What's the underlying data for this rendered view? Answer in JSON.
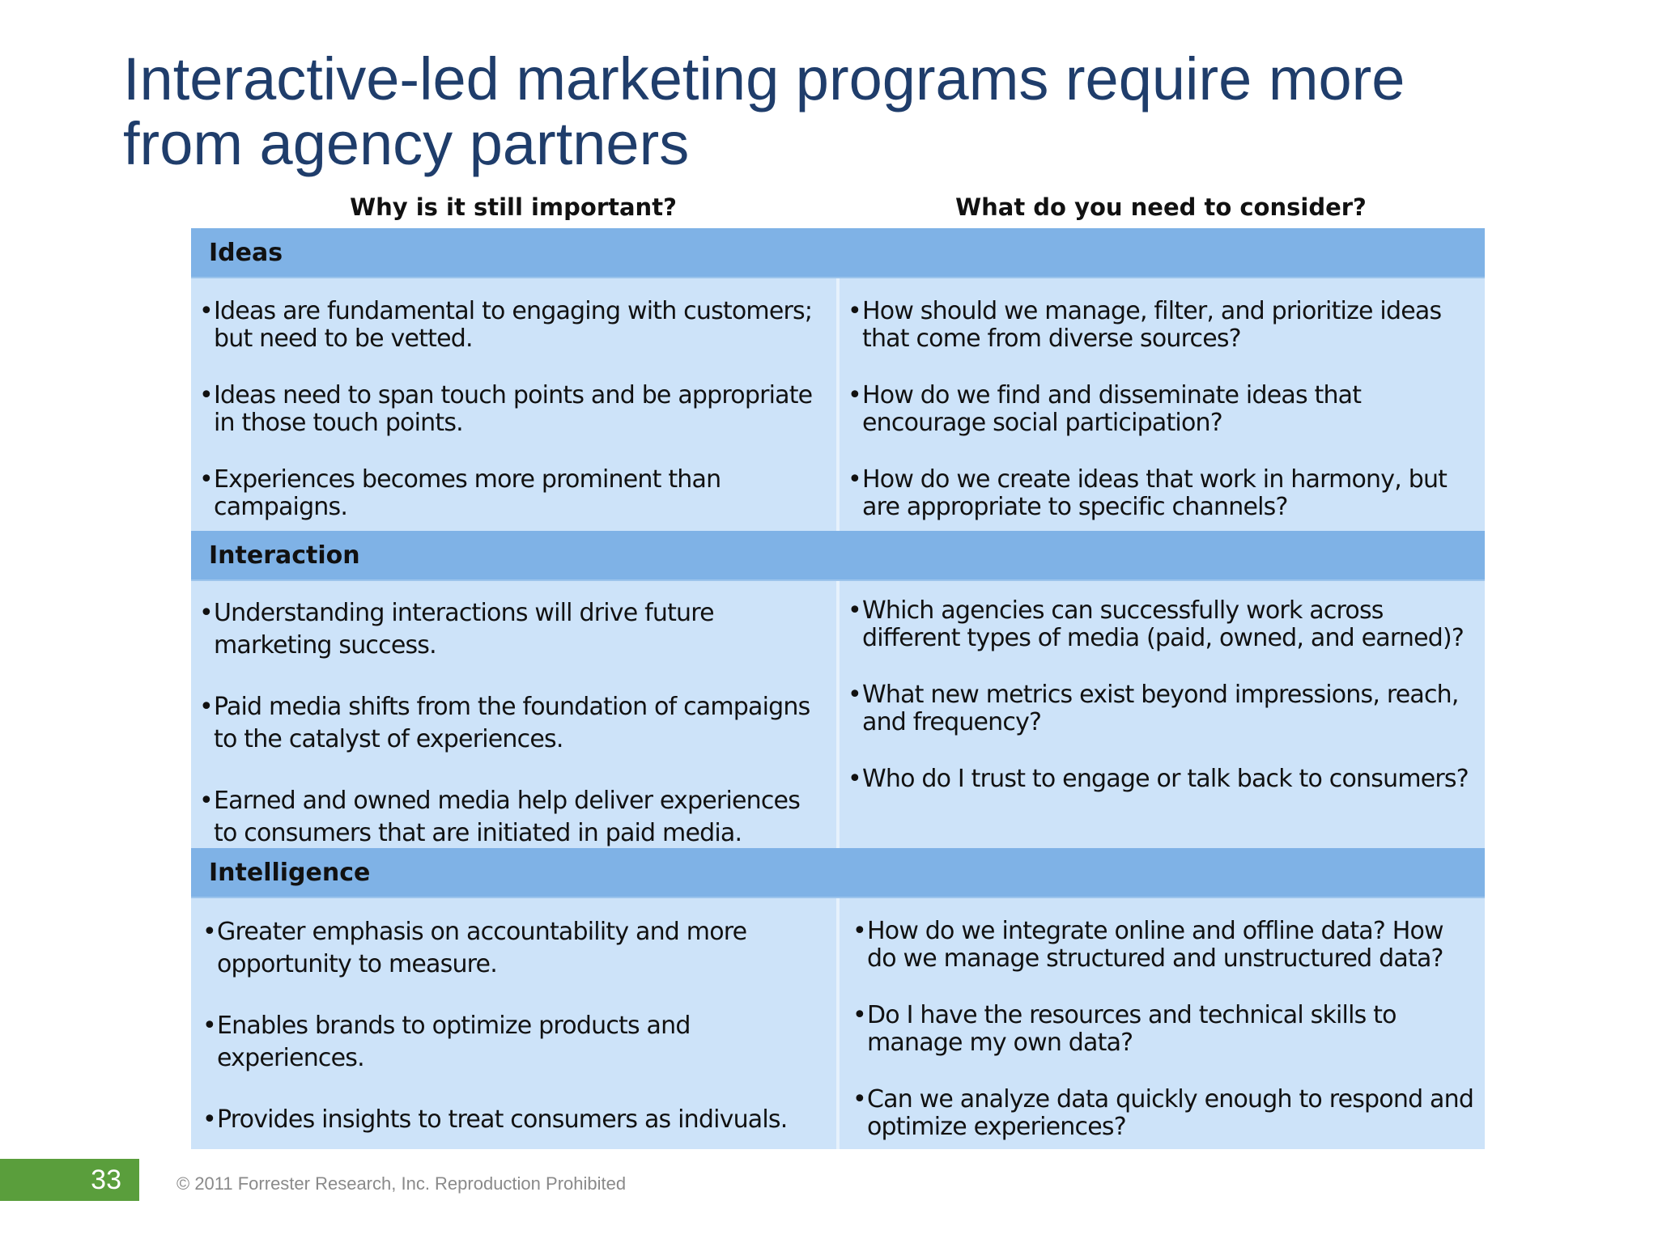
{
  "title": {
    "line1": "Interactive-led marketing programs require more",
    "line2": "from agency partners"
  },
  "columns": {
    "left": "Why is it still important?",
    "right": "What do you need to consider?"
  },
  "sections": [
    {
      "name": "Ideas",
      "left": [
        "Ideas are fundamental to engaging with customers; but need to be vetted.",
        "Ideas need to span touch points and be appropriate in those touch points.",
        "Experiences becomes more prominent than campaigns."
      ],
      "right": [
        "How should we manage, filter, and prioritize ideas that come from diverse sources?",
        "How do we find and disseminate ideas that encourage social participation?",
        "How do we create ideas that work in harmony, but are appropriate to specific channels?"
      ]
    },
    {
      "name": "Interaction",
      "left": [
        "Understanding interactions will drive future marketing success.",
        "Paid media shifts from the foundation of campaigns to the catalyst of experiences.",
        "Earned and owned media help deliver experiences to consumers that are initiated in paid media."
      ],
      "right": [
        "Which agencies can successfully work across different types of media (paid, owned, and earned)?",
        "What new metrics exist beyond impressions, reach, and frequency?",
        "Who do I trust to engage or talk back to consumers?"
      ]
    },
    {
      "name": "Intelligence",
      "left": [
        "Greater emphasis on accountability and more opportunity to measure.",
        "Enables brands to optimize products and experiences.",
        "Provides insights to treat consumers as indivuals."
      ],
      "right": [
        "How do we integrate online and offline data? How do we manage structured and unstructured data?",
        "Do I have the resources and technical skills to manage my own data?",
        "Can we analyze data quickly enough to respond and optimize experiences?"
      ]
    }
  ],
  "bullet_glyph": "•",
  "footer": {
    "page_number": "33",
    "copyright": "© 2011 Forrester Research, Inc. Reproduction Prohibited"
  },
  "colors": {
    "title": "#1f3d6b",
    "section_header": "#7fb2e6",
    "section_body": "#cde3f9",
    "page_badge": "#5a9e3c"
  }
}
